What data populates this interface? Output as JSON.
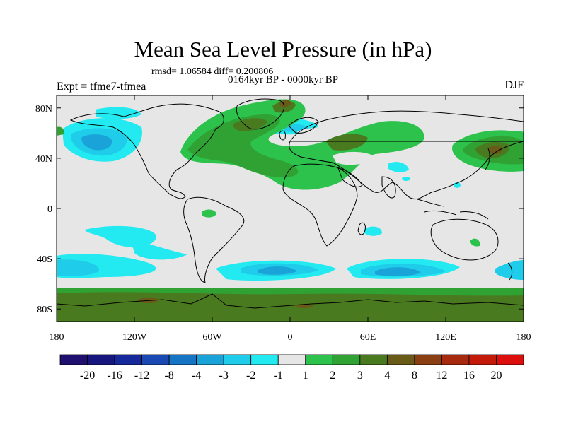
{
  "title": "Mean Sea Level Pressure (in hPa)",
  "rmsd_text": "rmsd= 1.06584 diff= 0.200806",
  "period_text": "0164kyr BP - 0000kyr BP",
  "expt_text": "Expt = tfme7-tfmea",
  "season": "DJF",
  "axes": {
    "lon_range": [
      -180,
      180
    ],
    "lat_range": [
      -90,
      90
    ],
    "x_ticks": [
      {
        "lon": -180,
        "label": "180"
      },
      {
        "lon": -120,
        "label": "120W"
      },
      {
        "lon": -60,
        "label": "60W"
      },
      {
        "lon": 0,
        "label": "0"
      },
      {
        "lon": 60,
        "label": "60E"
      },
      {
        "lon": 120,
        "label": "120E"
      },
      {
        "lon": 180,
        "label": "180"
      }
    ],
    "y_ticks": [
      {
        "lat": 80,
        "label": "80N"
      },
      {
        "lat": 40,
        "label": "40N"
      },
      {
        "lat": 0,
        "label": "0"
      },
      {
        "lat": -40,
        "label": "40S"
      },
      {
        "lat": -80,
        "label": "80S"
      }
    ]
  },
  "colorbar": {
    "colors": [
      "#1f0f6e",
      "#16167e",
      "#16299a",
      "#1a49b4",
      "#1674c4",
      "#19a3d8",
      "#1fcdea",
      "#22eaf0",
      "#e6e6e6",
      "#2cc24c",
      "#2fa233",
      "#4a7a1f",
      "#6a5a18",
      "#8a3e12",
      "#a82a0e",
      "#c41a0a",
      "#dd0f0d"
    ],
    "labels": [
      "-20",
      "-16",
      "-12",
      "-8",
      "-4",
      "-3",
      "-2",
      "-1",
      "1",
      "2",
      "3",
      "4",
      "8",
      "12",
      "16",
      "20"
    ]
  },
  "legend_items": [
    {
      "label": "1 to 2",
      "color": "#2cc24c"
    },
    {
      "label": "2 to 3",
      "color": "#2fa233"
    },
    {
      "label": "3 to 4",
      "color": "#4a7a1f"
    },
    {
      "label": "4 to 8",
      "color": "#6a5a18"
    },
    {
      "label": "-2 to -1",
      "color": "#22eaf0"
    },
    {
      "label": "-3 to -2",
      "color": "#1fcdea"
    },
    {
      "label": "-4 to -3",
      "color": "#19a3d8"
    }
  ],
  "map_colors": {
    "background": "#e6e6e6",
    "coast": "#000000"
  }
}
